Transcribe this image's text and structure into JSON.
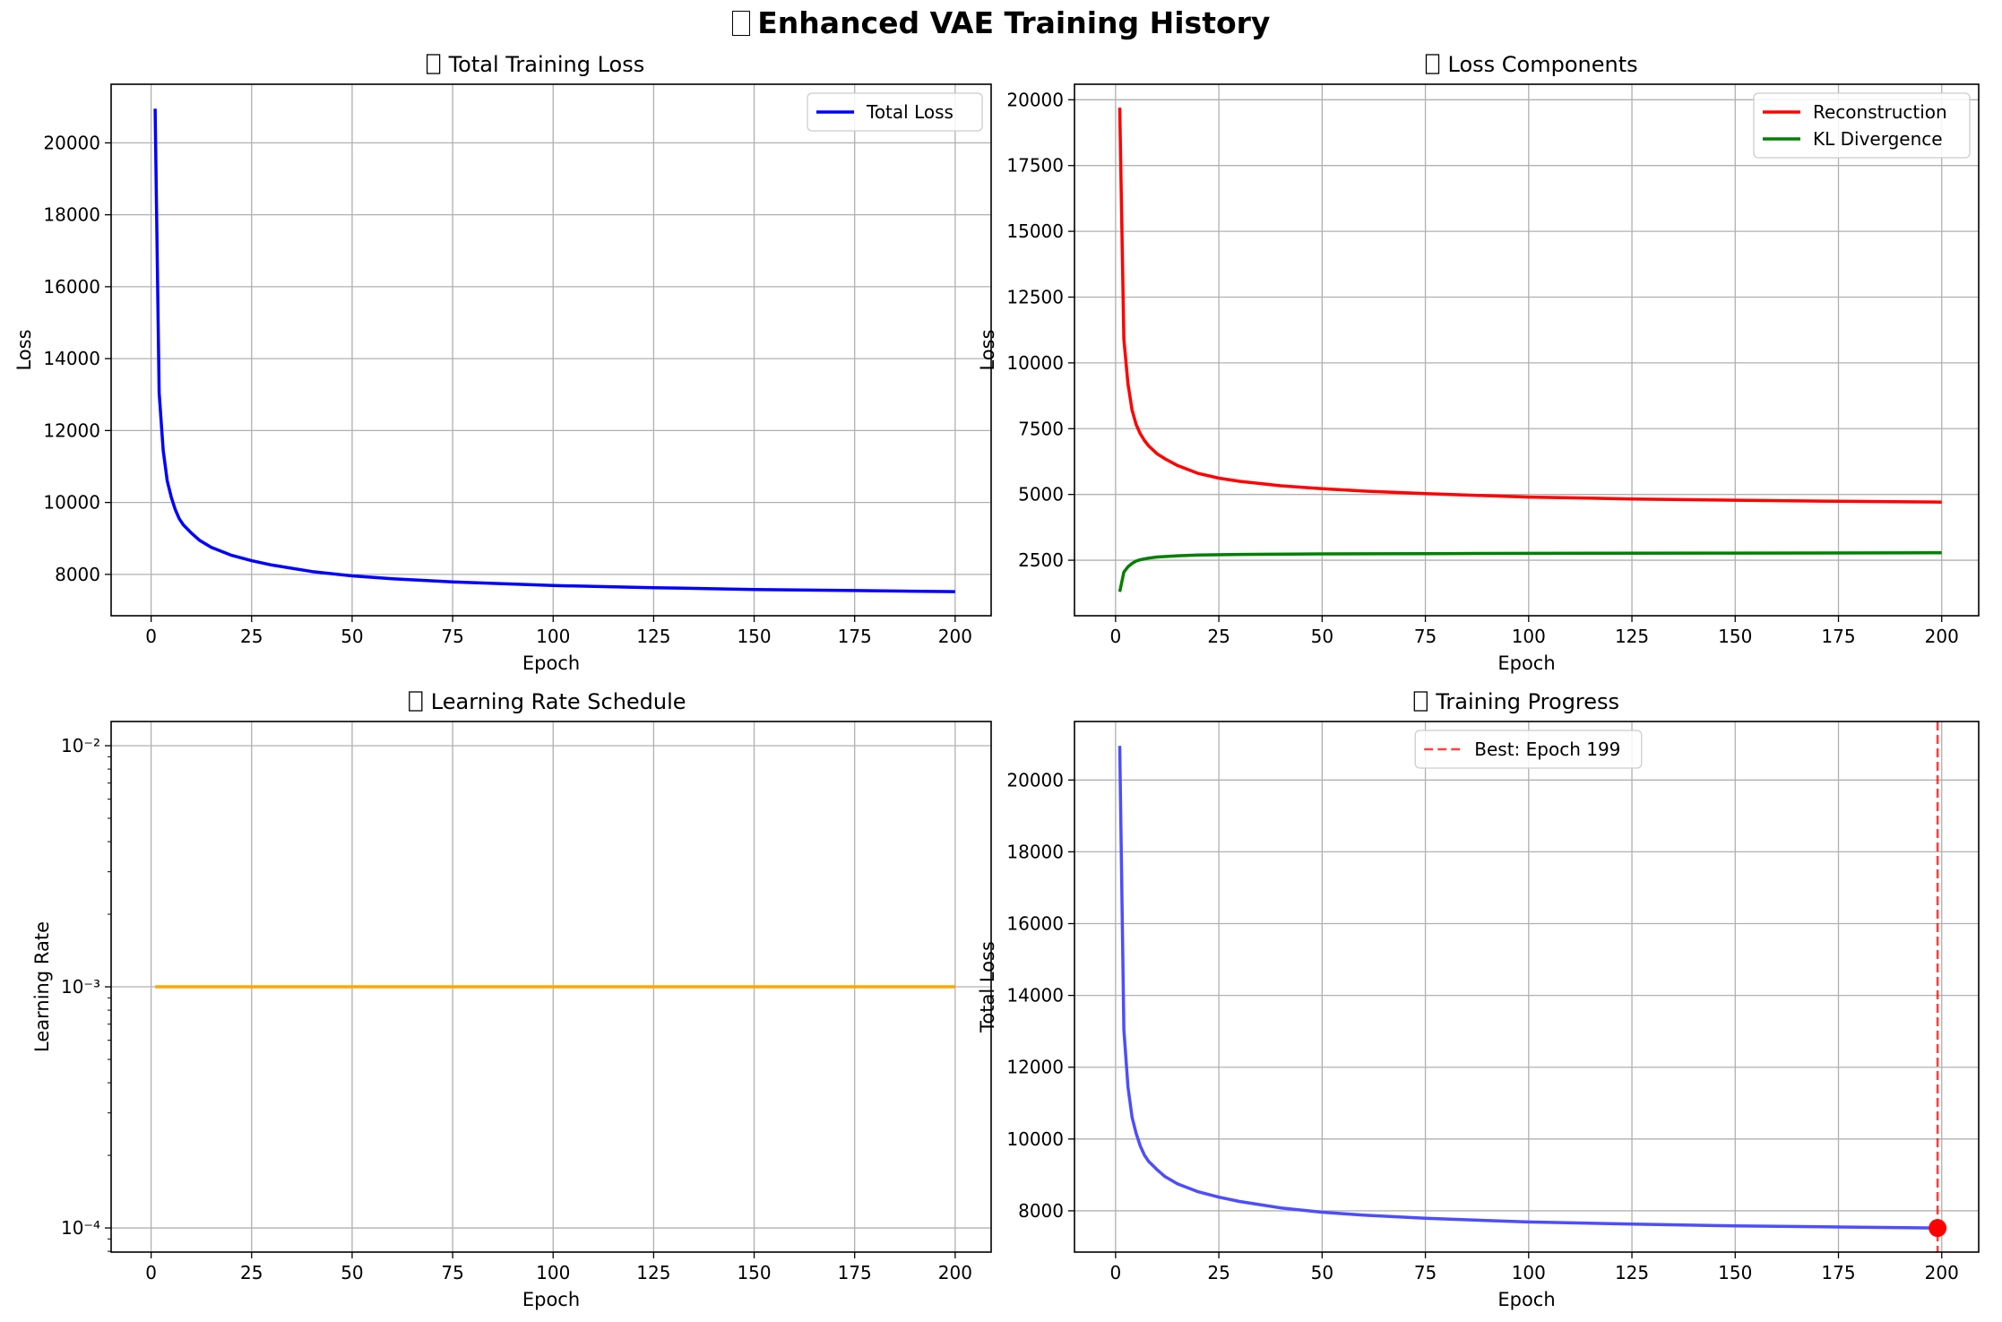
{
  "figure": {
    "title": "Enhanced VAE Training History",
    "title_glyph": "□"
  },
  "colors": {
    "total": "#0000ff",
    "reconstruction": "#ff0000",
    "kl": "#008000",
    "lr": "#ffa500",
    "progress": "#4d4dff",
    "best": "#ff0000",
    "grid": "#b0b0b0"
  },
  "chart_data": [
    {
      "id": "p1",
      "type": "line",
      "title": "Total Training Loss",
      "xlabel": "Epoch",
      "ylabel": "Loss",
      "xlim": [
        -9.95,
        208.95
      ],
      "ylim": [
        6850,
        21630
      ],
      "xticks": [
        0,
        25,
        50,
        75,
        100,
        125,
        150,
        175,
        200
      ],
      "yticks": [
        8000,
        10000,
        12000,
        14000,
        16000,
        18000,
        20000
      ],
      "grid": true,
      "legend": "top-right",
      "series": [
        {
          "name": "Total Loss",
          "color_key": "total",
          "x": [
            1,
            2,
            3,
            4,
            5,
            6,
            7,
            8,
            10,
            12,
            15,
            20,
            25,
            30,
            40,
            50,
            60,
            75,
            100,
            125,
            150,
            175,
            200
          ],
          "y": [
            20950,
            13050,
            11450,
            10600,
            10150,
            9800,
            9550,
            9380,
            9150,
            8950,
            8750,
            8530,
            8380,
            8260,
            8080,
            7960,
            7880,
            7790,
            7690,
            7630,
            7580,
            7550,
            7520
          ]
        }
      ]
    },
    {
      "id": "p2",
      "type": "line",
      "title": "Loss Components",
      "xlabel": "Epoch",
      "ylabel": "Loss",
      "xlim": [
        -9.95,
        208.95
      ],
      "ylim": [
        390,
        20590
      ],
      "xticks": [
        0,
        25,
        50,
        75,
        100,
        125,
        150,
        175,
        200
      ],
      "yticks": [
        2500,
        5000,
        7500,
        10000,
        12500,
        15000,
        17500,
        20000
      ],
      "grid": true,
      "legend": "top-right",
      "series": [
        {
          "name": "Reconstruction",
          "color_key": "reconstruction",
          "x": [
            1,
            2,
            3,
            4,
            5,
            6,
            7,
            8,
            10,
            12,
            15,
            20,
            25,
            30,
            40,
            50,
            60,
            75,
            100,
            125,
            150,
            175,
            200
          ],
          "y": [
            19700,
            10900,
            9200,
            8200,
            7650,
            7300,
            7050,
            6850,
            6550,
            6350,
            6100,
            5800,
            5620,
            5500,
            5330,
            5220,
            5130,
            5030,
            4900,
            4830,
            4780,
            4740,
            4710
          ]
        },
        {
          "name": "KL Divergence",
          "color_key": "kl",
          "x": [
            1,
            2,
            3,
            4,
            5,
            6,
            8,
            10,
            15,
            20,
            30,
            50,
            75,
            100,
            150,
            200
          ],
          "y": [
            1300,
            2050,
            2250,
            2380,
            2470,
            2520,
            2580,
            2620,
            2670,
            2700,
            2720,
            2740,
            2750,
            2760,
            2770,
            2780
          ]
        }
      ]
    },
    {
      "id": "p3",
      "type": "line",
      "title": "Learning Rate Schedule",
      "xlabel": "Epoch",
      "ylabel": "Learning Rate",
      "xscale": "linear",
      "yscale": "log",
      "xlim": [
        -9.95,
        208.95
      ],
      "ylim": [
        7.94e-05,
        0.0126
      ],
      "xticks": [
        0,
        25,
        50,
        75,
        100,
        125,
        150,
        175,
        200
      ],
      "yticks": [
        0.0001,
        0.001,
        0.01
      ],
      "ytick_labels": [
        "10⁻⁴",
        "10⁻³",
        "10⁻²"
      ],
      "grid": true,
      "series": [
        {
          "color_key": "lr",
          "x": [
            1,
            200
          ],
          "y": [
            0.001,
            0.001
          ]
        }
      ]
    },
    {
      "id": "p4",
      "type": "line",
      "title": "Training Progress",
      "xlabel": "Epoch",
      "ylabel": "Total Loss",
      "xlim": [
        -9.95,
        208.95
      ],
      "ylim": [
        6850,
        21630
      ],
      "xticks": [
        0,
        25,
        50,
        75,
        100,
        125,
        150,
        175,
        200
      ],
      "yticks": [
        8000,
        10000,
        12000,
        14000,
        16000,
        18000,
        20000
      ],
      "grid": true,
      "legend": "top-center",
      "series": [
        {
          "color_key": "progress",
          "x": [
            1,
            2,
            3,
            4,
            5,
            6,
            7,
            8,
            10,
            12,
            15,
            20,
            25,
            30,
            40,
            50,
            60,
            75,
            100,
            125,
            150,
            175,
            199
          ],
          "y": [
            20950,
            13050,
            11450,
            10600,
            10150,
            9800,
            9550,
            9380,
            9150,
            8950,
            8750,
            8530,
            8380,
            8260,
            8080,
            7960,
            7880,
            7790,
            7690,
            7630,
            7580,
            7550,
            7520
          ]
        }
      ],
      "best": {
        "label": "Best: Epoch 199",
        "epoch": 199,
        "value": 7520
      }
    }
  ]
}
